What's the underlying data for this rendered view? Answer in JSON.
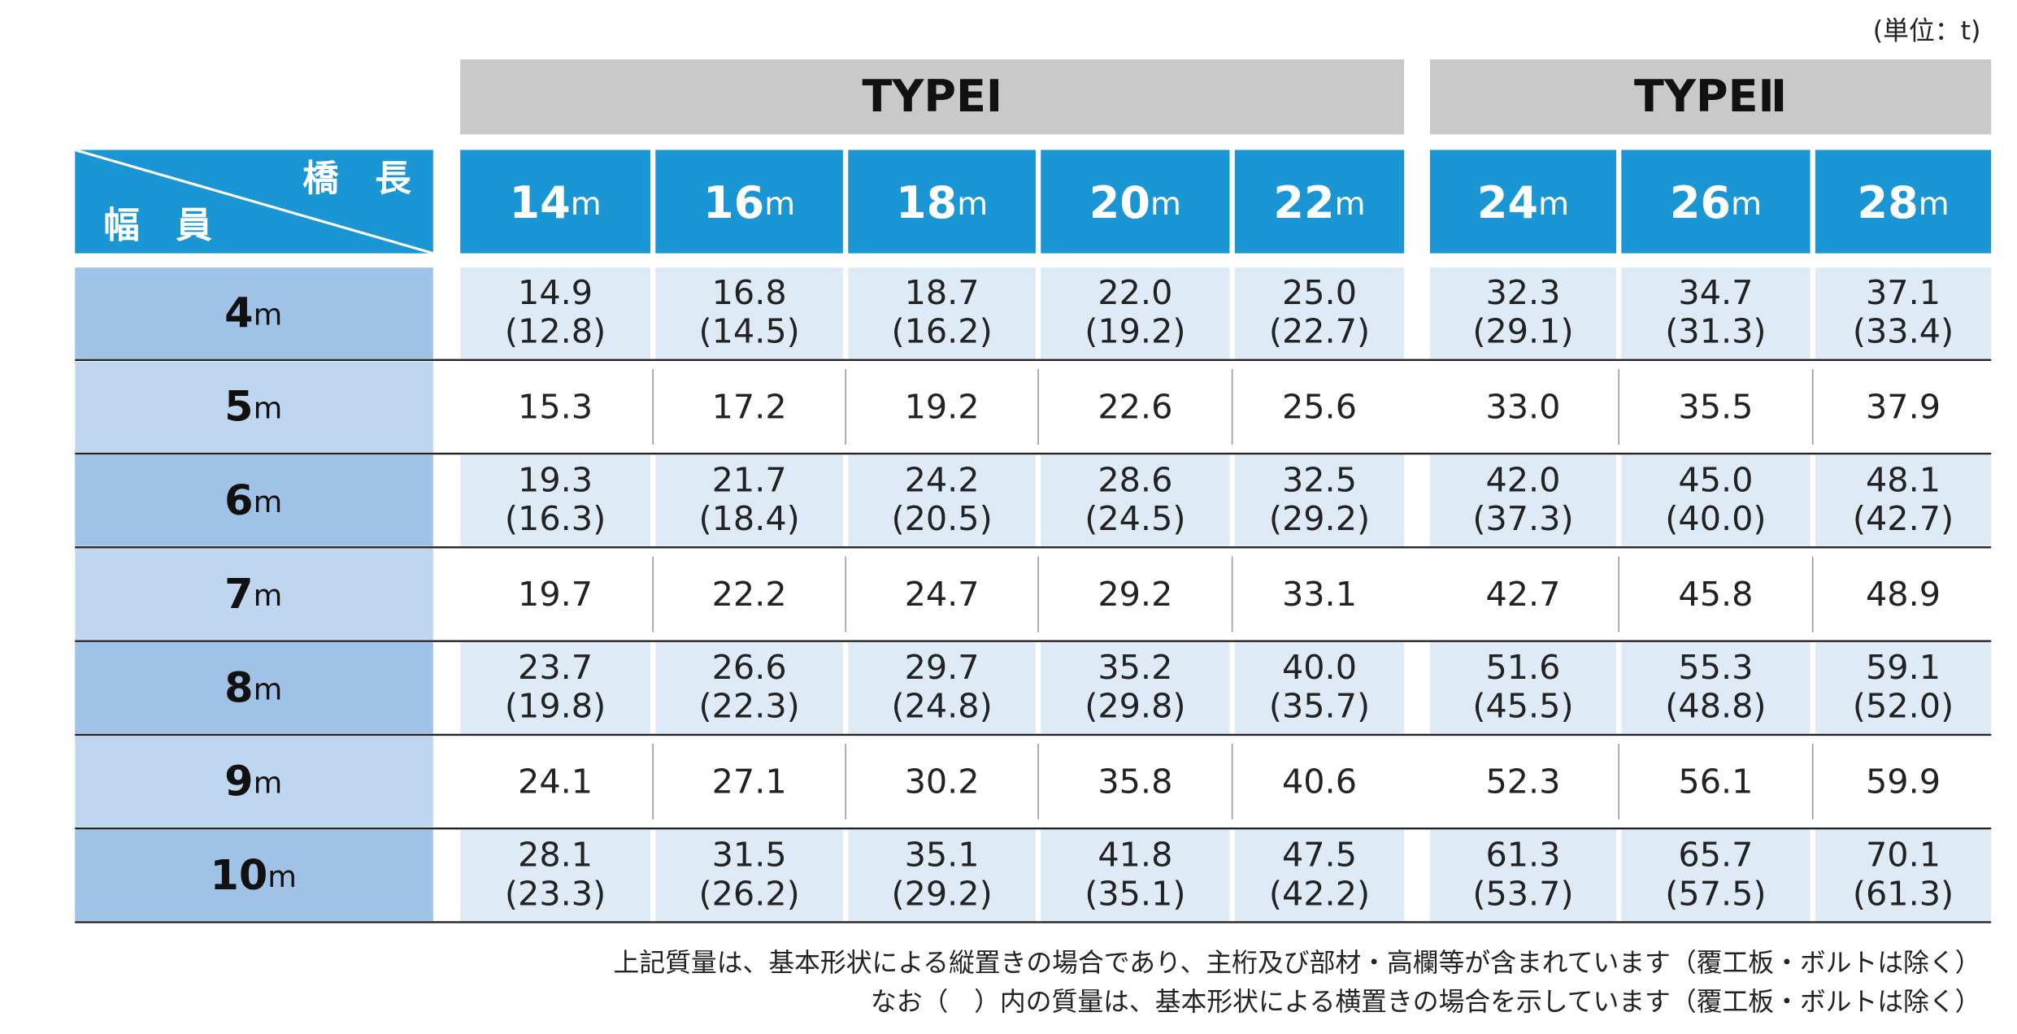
{
  "header": {
    "unit": "(単位：t)",
    "types": [
      "TYPEⅠ",
      "TYPEⅡ"
    ]
  },
  "table": {
    "corner": {
      "length": "橋　長",
      "width": "幅　員"
    },
    "columns": [
      {
        "num": "14",
        "unit": "m"
      },
      {
        "num": "16",
        "unit": "m"
      },
      {
        "num": "18",
        "unit": "m"
      },
      {
        "num": "20",
        "unit": "m"
      },
      {
        "num": "22",
        "unit": "m"
      },
      {
        "num": "24",
        "unit": "m"
      },
      {
        "num": "26",
        "unit": "m"
      },
      {
        "num": "28",
        "unit": "m"
      }
    ],
    "rows": [
      {
        "width": {
          "num": "4",
          "unit": "m"
        },
        "values": [
          "14.9",
          "16.8",
          "18.7",
          "22.0",
          "25.0",
          "32.3",
          "34.7",
          "37.1"
        ],
        "alt": [
          "(12.8)",
          "(14.5)",
          "(16.2)",
          "(19.2)",
          "(22.7)",
          "(29.1)",
          "(31.3)",
          "(33.4)"
        ]
      },
      {
        "width": {
          "num": "5",
          "unit": "m"
        },
        "values": [
          "15.3",
          "17.2",
          "19.2",
          "22.6",
          "25.6",
          "33.0",
          "35.5",
          "37.9"
        ]
      },
      {
        "width": {
          "num": "6",
          "unit": "m"
        },
        "values": [
          "19.3",
          "21.7",
          "24.2",
          "28.6",
          "32.5",
          "42.0",
          "45.0",
          "48.1"
        ],
        "alt": [
          "(16.3)",
          "(18.4)",
          "(20.5)",
          "(24.5)",
          "(29.2)",
          "(37.3)",
          "(40.0)",
          "(42.7)"
        ]
      },
      {
        "width": {
          "num": "7",
          "unit": "m"
        },
        "values": [
          "19.7",
          "22.2",
          "24.7",
          "29.2",
          "33.1",
          "42.7",
          "45.8",
          "48.9"
        ]
      },
      {
        "width": {
          "num": "8",
          "unit": "m"
        },
        "values": [
          "23.7",
          "26.6",
          "29.7",
          "35.2",
          "40.0",
          "51.6",
          "55.3",
          "59.1"
        ],
        "alt": [
          "(19.8)",
          "(22.3)",
          "(24.8)",
          "(29.8)",
          "(35.7)",
          "(45.5)",
          "(48.8)",
          "(52.0)"
        ]
      },
      {
        "width": {
          "num": "9",
          "unit": "m"
        },
        "values": [
          "24.1",
          "27.1",
          "30.2",
          "35.8",
          "40.6",
          "52.3",
          "56.1",
          "59.9"
        ]
      },
      {
        "width": {
          "num": "10",
          "unit": "m"
        },
        "values": [
          "28.1",
          "31.5",
          "35.1",
          "41.8",
          "47.5",
          "61.3",
          "65.7",
          "70.1"
        ],
        "alt": [
          "(23.3)",
          "(26.2)",
          "(29.2)",
          "(35.1)",
          "(42.2)",
          "(53.7)",
          "(57.5)",
          "(61.3)"
        ]
      }
    ]
  },
  "notes": [
    "上記質量は、基本形状による縦置きの場合であり、主桁及び部材・高欄等が含まれています（覆工板・ボルトは除く）",
    "なお（　）内の質量は、基本形状による横置きの場合を示しています（覆工板・ボルトは除く）"
  ]
}
